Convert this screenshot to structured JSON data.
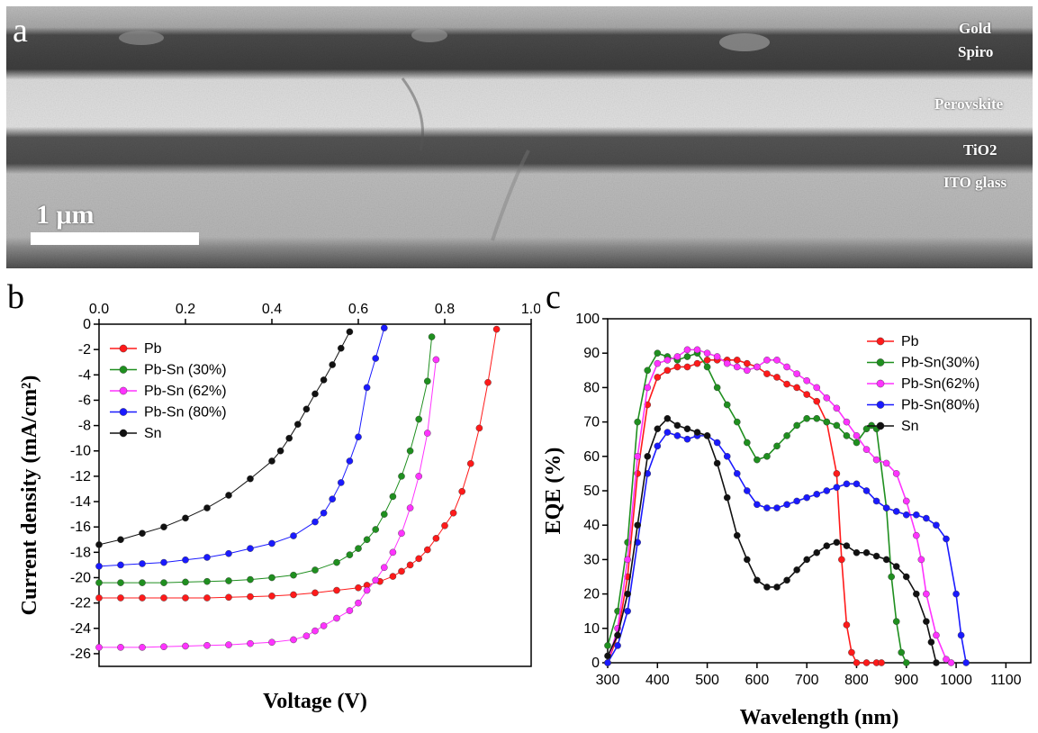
{
  "panel_a": {
    "letter": "a",
    "scale_label": "1 μm",
    "layers": [
      "Gold",
      "Spiro",
      "Perovskite",
      "TiO2",
      "ITO glass"
    ]
  },
  "panel_b": {
    "letter": "b"
  },
  "panel_c": {
    "letter": "c"
  },
  "colors": {
    "Pb": "#ff1a1a",
    "Pb-Sn30": "#1f8f1f",
    "Pb-Sn62": "#ff33ff",
    "Pb-Sn80": "#1a1aff",
    "Sn": "#111111"
  },
  "chart_data": [
    {
      "type": "line",
      "panel": "b",
      "xlabel": "Voltage (V)",
      "ylabel": "Current density (mA/cm²)",
      "xlim": [
        0.0,
        1.0
      ],
      "ylim": [
        -27,
        0
      ],
      "x_ticks": [
        "0.0",
        "0.2",
        "0.4",
        "0.6",
        "0.8",
        "1.0"
      ],
      "y_ticks": [
        "0",
        "-2",
        "-4",
        "-6",
        "-8",
        "-10",
        "-12",
        "-14",
        "-16",
        "-18",
        "-20",
        "-22",
        "-24",
        "-26"
      ],
      "x_axis_position": "top",
      "legend_position": "top-left",
      "series": [
        {
          "name": "Pb",
          "color_key": "Pb",
          "x": [
            0.0,
            0.05,
            0.1,
            0.15,
            0.2,
            0.25,
            0.3,
            0.35,
            0.4,
            0.45,
            0.5,
            0.55,
            0.6,
            0.62,
            0.65,
            0.68,
            0.7,
            0.72,
            0.74,
            0.76,
            0.78,
            0.8,
            0.82,
            0.84,
            0.86,
            0.88,
            0.9,
            0.92
          ],
          "y": [
            -21.6,
            -21.6,
            -21.6,
            -21.6,
            -21.6,
            -21.6,
            -21.55,
            -21.5,
            -21.45,
            -21.35,
            -21.2,
            -21.0,
            -20.8,
            -20.6,
            -20.3,
            -19.9,
            -19.5,
            -19.0,
            -18.5,
            -17.8,
            -16.9,
            -15.9,
            -14.9,
            -13.2,
            -11.0,
            -8.2,
            -4.6,
            -0.4
          ]
        },
        {
          "name": "Pb-Sn (30%)",
          "color_key": "Pb-Sn30",
          "x": [
            0.0,
            0.05,
            0.1,
            0.15,
            0.2,
            0.25,
            0.3,
            0.35,
            0.4,
            0.45,
            0.5,
            0.55,
            0.58,
            0.6,
            0.62,
            0.64,
            0.66,
            0.68,
            0.7,
            0.72,
            0.74,
            0.76,
            0.77
          ],
          "y": [
            -20.4,
            -20.4,
            -20.4,
            -20.4,
            -20.35,
            -20.3,
            -20.25,
            -20.15,
            -20.0,
            -19.8,
            -19.4,
            -18.8,
            -18.2,
            -17.7,
            -17.0,
            -16.2,
            -15.0,
            -13.6,
            -12.0,
            -10.0,
            -7.5,
            -4.5,
            -1.0
          ]
        },
        {
          "name": "Pb-Sn (62%)",
          "color_key": "Pb-Sn62",
          "x": [
            0.0,
            0.05,
            0.1,
            0.15,
            0.2,
            0.25,
            0.3,
            0.35,
            0.4,
            0.45,
            0.48,
            0.5,
            0.52,
            0.55,
            0.58,
            0.6,
            0.62,
            0.64,
            0.66,
            0.68,
            0.7,
            0.72,
            0.74,
            0.76,
            0.78
          ],
          "y": [
            -25.5,
            -25.5,
            -25.5,
            -25.45,
            -25.4,
            -25.35,
            -25.3,
            -25.2,
            -25.1,
            -24.9,
            -24.6,
            -24.2,
            -23.8,
            -23.2,
            -22.6,
            -22.0,
            -21.0,
            -20.2,
            -19.2,
            -18.0,
            -16.5,
            -14.5,
            -12.0,
            -8.6,
            -2.8
          ]
        },
        {
          "name": "Pb-Sn (80%)",
          "color_key": "Pb-Sn80",
          "x": [
            0.0,
            0.05,
            0.1,
            0.15,
            0.2,
            0.25,
            0.3,
            0.35,
            0.4,
            0.45,
            0.5,
            0.52,
            0.54,
            0.56,
            0.58,
            0.6,
            0.62,
            0.64,
            0.66
          ],
          "y": [
            -19.1,
            -19.0,
            -18.9,
            -18.8,
            -18.6,
            -18.4,
            -18.1,
            -17.7,
            -17.3,
            -16.7,
            -15.6,
            -14.9,
            -13.8,
            -12.5,
            -10.8,
            -8.9,
            -5.0,
            -2.7,
            -0.3
          ]
        },
        {
          "name": "Sn",
          "color_key": "Sn",
          "x": [
            0.0,
            0.05,
            0.1,
            0.15,
            0.2,
            0.25,
            0.3,
            0.35,
            0.4,
            0.42,
            0.44,
            0.46,
            0.48,
            0.5,
            0.52,
            0.54,
            0.56,
            0.58
          ],
          "y": [
            -17.4,
            -17.0,
            -16.5,
            -16.0,
            -15.3,
            -14.5,
            -13.5,
            -12.2,
            -10.8,
            -10.0,
            -9.0,
            -7.9,
            -6.7,
            -5.5,
            -4.4,
            -3.2,
            -1.9,
            -0.6
          ]
        }
      ]
    },
    {
      "type": "line",
      "panel": "c",
      "xlabel": "Wavelength (nm)",
      "ylabel": "EQE (%)",
      "xlim": [
        300,
        1150
      ],
      "ylim": [
        0,
        100
      ],
      "x_ticks": [
        "300",
        "400",
        "500",
        "600",
        "700",
        "800",
        "900",
        "1000",
        "1100"
      ],
      "y_ticks": [
        "0",
        "10",
        "20",
        "30",
        "40",
        "50",
        "60",
        "70",
        "80",
        "90",
        "100"
      ],
      "legend_position": "top-right",
      "series": [
        {
          "name": "Pb",
          "color_key": "Pb",
          "x": [
            300,
            320,
            340,
            360,
            380,
            400,
            420,
            440,
            460,
            480,
            500,
            520,
            540,
            560,
            580,
            600,
            620,
            640,
            660,
            680,
            700,
            720,
            740,
            760,
            770,
            780,
            790,
            800,
            820,
            840,
            850
          ],
          "y": [
            0,
            8,
            25,
            55,
            75,
            83,
            85,
            86,
            86,
            87,
            88,
            88,
            88,
            88,
            87,
            86,
            84,
            83,
            81,
            80,
            78,
            76,
            70,
            55,
            30,
            11,
            3,
            0,
            0,
            0,
            0
          ]
        },
        {
          "name": "Pb-Sn(30%)",
          "color_key": "Pb-Sn30",
          "x": [
            300,
            320,
            340,
            360,
            380,
            400,
            420,
            440,
            460,
            480,
            500,
            520,
            540,
            560,
            580,
            600,
            620,
            640,
            660,
            680,
            700,
            720,
            740,
            760,
            780,
            800,
            820,
            830,
            840,
            860,
            870,
            880,
            890,
            900
          ],
          "y": [
            5,
            15,
            35,
            70,
            85,
            90,
            89,
            88,
            89,
            90,
            86,
            80,
            75,
            70,
            64,
            59,
            60,
            63,
            66,
            69,
            71,
            71,
            70,
            69,
            66,
            64,
            68,
            69,
            68,
            45,
            25,
            12,
            3,
            0
          ]
        },
        {
          "name": "Pb-Sn(62%)",
          "color_key": "Pb-Sn62",
          "x": [
            300,
            320,
            340,
            360,
            380,
            400,
            420,
            440,
            460,
            480,
            500,
            520,
            540,
            560,
            580,
            600,
            620,
            640,
            660,
            680,
            700,
            720,
            740,
            760,
            780,
            800,
            820,
            840,
            860,
            880,
            900,
            920,
            930,
            940,
            960,
            980,
            990
          ],
          "y": [
            0,
            10,
            30,
            60,
            80,
            87,
            88,
            89,
            91,
            91,
            90,
            89,
            87,
            86,
            85,
            86,
            88,
            88,
            86,
            84,
            82,
            80,
            77,
            74,
            70,
            66,
            62,
            59,
            58,
            55,
            47,
            37,
            30,
            20,
            8,
            1,
            0
          ]
        },
        {
          "name": "Pb-Sn(80%)",
          "color_key": "Pb-Sn80",
          "x": [
            300,
            320,
            340,
            360,
            380,
            400,
            420,
            440,
            460,
            480,
            500,
            520,
            540,
            560,
            580,
            600,
            620,
            640,
            660,
            680,
            700,
            720,
            740,
            760,
            780,
            800,
            820,
            840,
            860,
            880,
            900,
            920,
            940,
            960,
            980,
            1000,
            1010,
            1020
          ],
          "y": [
            0,
            5,
            15,
            35,
            55,
            63,
            67,
            66,
            65,
            66,
            66,
            64,
            60,
            55,
            50,
            46,
            45,
            45,
            46,
            47,
            48,
            49,
            50,
            51,
            52,
            52,
            50,
            47,
            45,
            44,
            43,
            43,
            42,
            40,
            36,
            20,
            8,
            0
          ]
        },
        {
          "name": "Sn",
          "color_key": "Sn",
          "x": [
            300,
            320,
            340,
            360,
            380,
            400,
            420,
            440,
            460,
            480,
            500,
            520,
            540,
            560,
            580,
            600,
            620,
            640,
            660,
            680,
            700,
            720,
            740,
            760,
            780,
            800,
            820,
            840,
            860,
            880,
            900,
            920,
            940,
            950,
            960
          ],
          "y": [
            2,
            8,
            20,
            40,
            60,
            68,
            71,
            69,
            68,
            67,
            66,
            58,
            48,
            37,
            30,
            24,
            22,
            22,
            24,
            27,
            30,
            32,
            34,
            35,
            34,
            32,
            32,
            31,
            30,
            28,
            25,
            20,
            12,
            6,
            0
          ]
        }
      ]
    }
  ]
}
